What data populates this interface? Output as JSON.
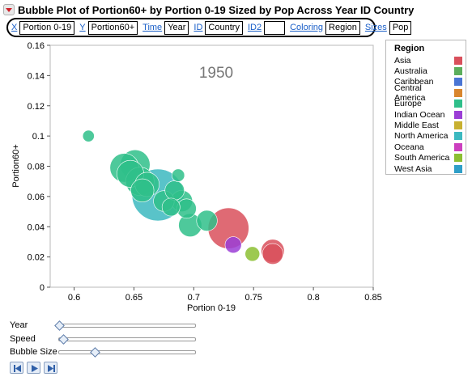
{
  "title": "Bubble Plot of Portion60+ by Portion 0-19 Sized by Pop Across Year ID Country",
  "roles": [
    {
      "link": "X",
      "value": "Portion 0-19"
    },
    {
      "link": "Y",
      "value": "Portion60+"
    },
    {
      "link": "Time",
      "value": "Year"
    },
    {
      "link": "ID",
      "value": "Country"
    },
    {
      "link": "ID2",
      "value": ""
    },
    {
      "link": "Coloring",
      "value": "Region"
    },
    {
      "link": "Sizes",
      "value": "Pop"
    }
  ],
  "chart_data": {
    "type": "scatter",
    "subtype": "bubble",
    "year_label": "1950",
    "xlabel": "Portion 0-19",
    "ylabel": "Portion60+",
    "xlim": [
      0.58,
      0.85
    ],
    "ylim": [
      0,
      0.16
    ],
    "xticks": [
      "0.6",
      "0.65",
      "0.7",
      "0.75",
      "0.8",
      "0.85"
    ],
    "yticks": [
      "0",
      "0.02",
      "0.04",
      "0.06",
      "0.08",
      "0.1",
      "0.12",
      "0.14",
      "0.16"
    ],
    "grid": false,
    "points": [
      {
        "x": 0.67,
        "y": 0.061,
        "size": 1.0,
        "region": "North America"
      },
      {
        "x": 0.729,
        "y": 0.039,
        "size": 0.62,
        "region": "Asia"
      },
      {
        "x": 0.651,
        "y": 0.081,
        "size": 0.33,
        "region": "Europe"
      },
      {
        "x": 0.642,
        "y": 0.079,
        "size": 0.31,
        "region": "Europe"
      },
      {
        "x": 0.647,
        "y": 0.075,
        "size": 0.27,
        "region": "Europe"
      },
      {
        "x": 0.655,
        "y": 0.07,
        "size": 0.3,
        "region": "Europe"
      },
      {
        "x": 0.661,
        "y": 0.068,
        "size": 0.22,
        "region": "Europe"
      },
      {
        "x": 0.657,
        "y": 0.064,
        "size": 0.2,
        "region": "Europe"
      },
      {
        "x": 0.675,
        "y": 0.057,
        "size": 0.16,
        "region": "Europe"
      },
      {
        "x": 0.684,
        "y": 0.064,
        "size": 0.14,
        "region": "Europe"
      },
      {
        "x": 0.69,
        "y": 0.057,
        "size": 0.17,
        "region": "Europe"
      },
      {
        "x": 0.694,
        "y": 0.052,
        "size": 0.14,
        "region": "Europe"
      },
      {
        "x": 0.681,
        "y": 0.053,
        "size": 0.12,
        "region": "Europe"
      },
      {
        "x": 0.697,
        "y": 0.041,
        "size": 0.2,
        "region": "Europe"
      },
      {
        "x": 0.711,
        "y": 0.044,
        "size": 0.16,
        "region": "Europe"
      },
      {
        "x": 0.687,
        "y": 0.074,
        "size": 0.06,
        "region": "Europe"
      },
      {
        "x": 0.612,
        "y": 0.1,
        "size": 0.05,
        "region": "Europe"
      },
      {
        "x": 0.766,
        "y": 0.024,
        "size": 0.2,
        "region": "Asia"
      },
      {
        "x": 0.766,
        "y": 0.022,
        "size": 0.16,
        "region": "Asia"
      },
      {
        "x": 0.733,
        "y": 0.028,
        "size": 0.1,
        "region": "Indian Ocean"
      },
      {
        "x": 0.749,
        "y": 0.022,
        "size": 0.08,
        "region": "South America"
      }
    ]
  },
  "legend": {
    "title": "Region",
    "items": [
      {
        "label": "Asia",
        "color": "#d9505c"
      },
      {
        "label": "Australia",
        "color": "#5cae5c"
      },
      {
        "label": "Caribbean",
        "color": "#4a75d4"
      },
      {
        "label": "Central America",
        "color": "#d9862e"
      },
      {
        "label": "Europe",
        "color": "#2fbf8a"
      },
      {
        "label": "Indian Ocean",
        "color": "#9b3ed6"
      },
      {
        "label": "Middle East",
        "color": "#c8b030"
      },
      {
        "label": "North America",
        "color": "#3cb9c0"
      },
      {
        "label": "Oceana",
        "color": "#cc3fbf"
      },
      {
        "label": "South America",
        "color": "#8cbf32"
      },
      {
        "label": "West Asia",
        "color": "#2f9fc8"
      }
    ]
  },
  "controls": {
    "year_label": "Year",
    "speed_label": "Speed",
    "bubble_size_label": "Bubble Size",
    "year_value": 0.0,
    "speed_value": 0.03,
    "bubble_size_value": 0.26,
    "buttons": [
      "step-back-icon",
      "play-icon",
      "step-forward-icon"
    ]
  }
}
